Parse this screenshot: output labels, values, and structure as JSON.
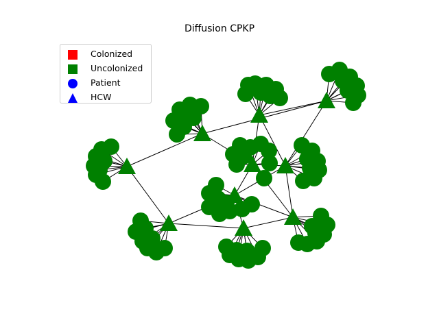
{
  "title": "Diffusion CPKP",
  "legend": [
    {
      "label": "Colonized",
      "shape": "square",
      "color": "#ff0000"
    },
    {
      "label": "Uncolonized",
      "shape": "square",
      "color": "#008000"
    },
    {
      "label": "Patient",
      "shape": "circle",
      "color": "#0000ff"
    },
    {
      "label": "HCW",
      "shape": "triangle",
      "color": "#0000ff"
    }
  ],
  "colors": {
    "uncolonized": "#008000",
    "colonized": "#ff0000",
    "edge": "#000000"
  },
  "graph": {
    "hcw_count": 10,
    "patient_count": 96,
    "all_nodes_status": "Uncolonized"
  }
}
